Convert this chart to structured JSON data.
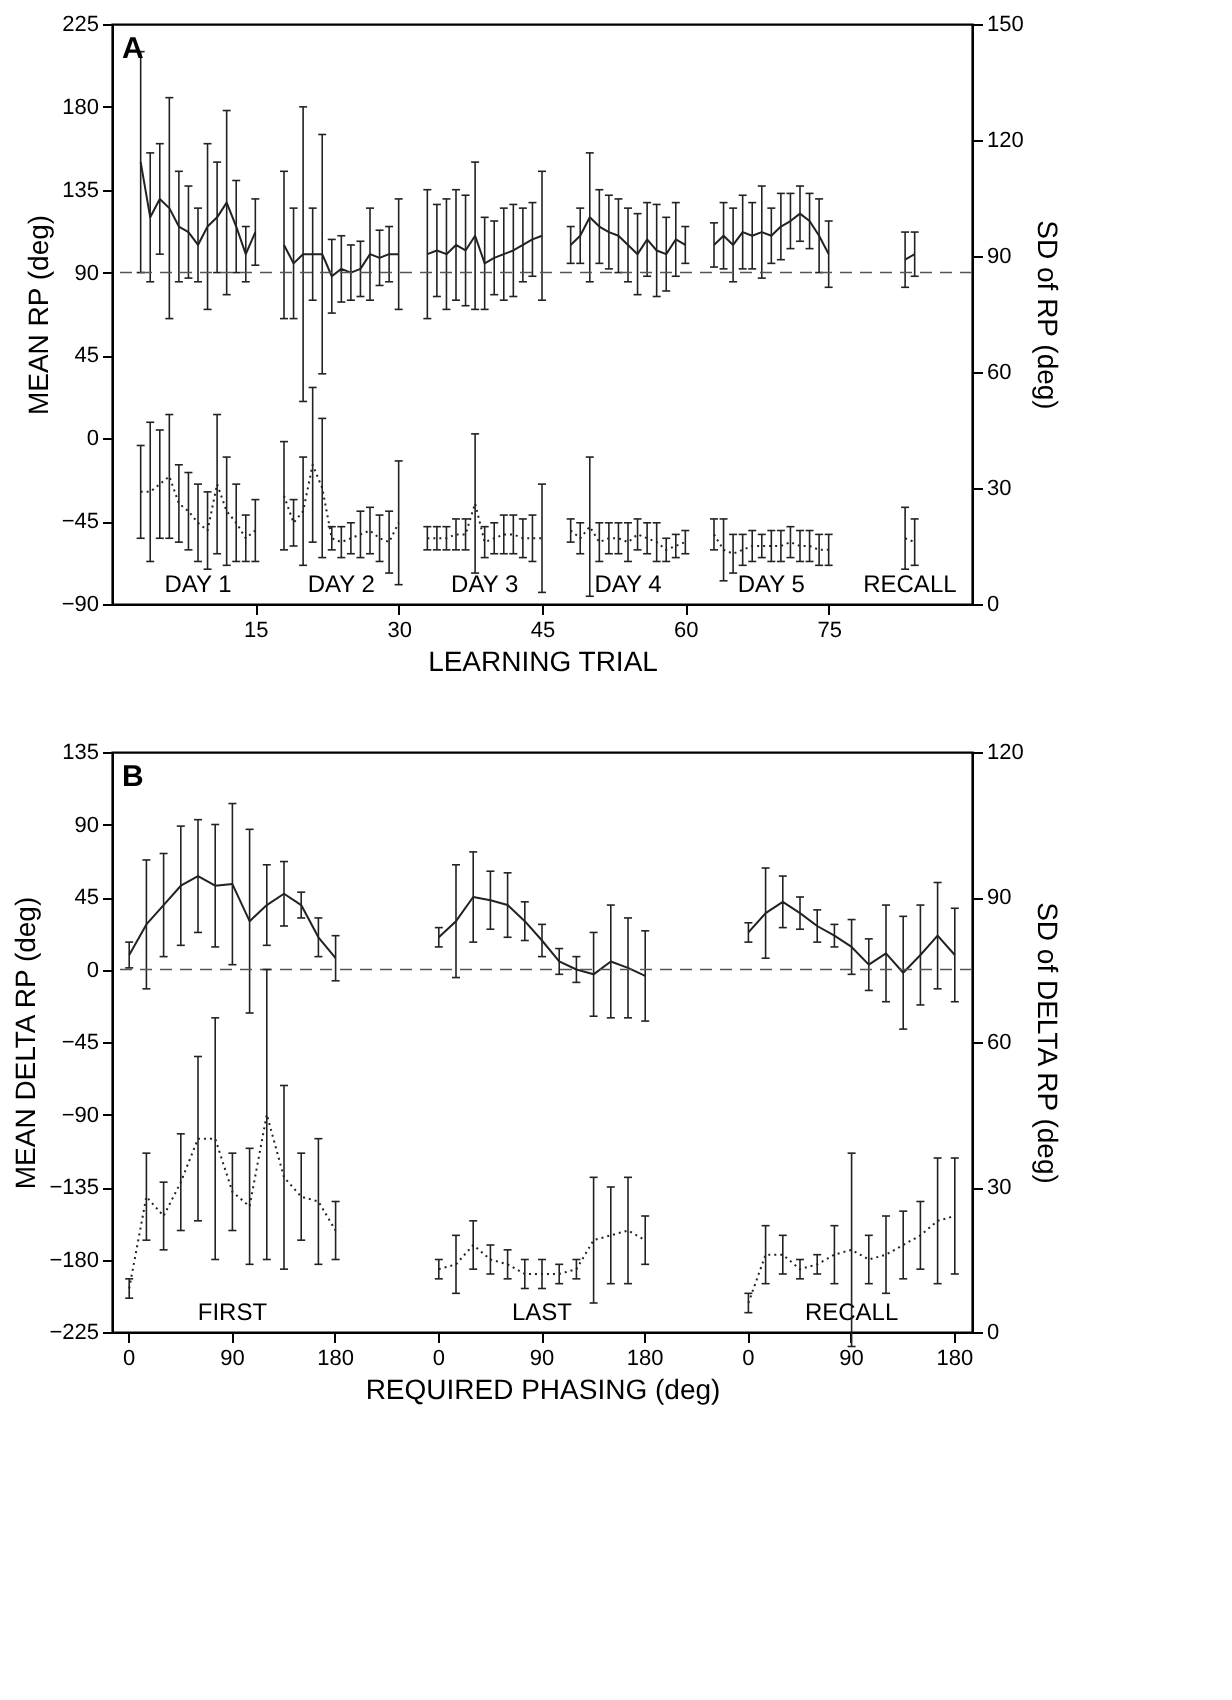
{
  "chart_data": [
    {
      "type": "line",
      "xlabel": "LEARNING TRIAL",
      "ylabel": "MEAN RP (deg)",
      "y2label": "SD of RP (deg)",
      "xlim": [
        0,
        90
      ],
      "xticks": [
        15,
        30,
        45,
        60,
        75
      ],
      "ylim": [
        -90,
        225
      ],
      "yticks": [
        -90,
        -45,
        0,
        45,
        90,
        135,
        180,
        225
      ],
      "y2lim": [
        0,
        150
      ],
      "y2ticks": [
        0,
        30,
        60,
        90,
        120,
        150
      ],
      "grid": false,
      "series": [
        {
          "type": "line",
          "color": "#222222",
          "line_style": "solid",
          "x": [
            3,
            4,
            5,
            6,
            7,
            8,
            9,
            10,
            11,
            12,
            13,
            14,
            15,
            16,
            18,
            19,
            20,
            21,
            22,
            23,
            24,
            25,
            26,
            27,
            28,
            29,
            30,
            31,
            33,
            34,
            35,
            36,
            37,
            38,
            39,
            40,
            41,
            42,
            43,
            44,
            45,
            46,
            48,
            49,
            50,
            51,
            52,
            53,
            54,
            55,
            56,
            57,
            58,
            59,
            60,
            61,
            63,
            64,
            65,
            66,
            67,
            68,
            69,
            70,
            71,
            72,
            73,
            74,
            75,
            76,
            83,
            84
          ],
          "values": [
            150,
            120,
            130,
            125,
            115,
            112,
            105,
            115,
            120,
            128,
            115,
            100,
            112,
            null,
            105,
            95,
            100,
            100,
            100,
            88,
            92,
            90,
            92,
            100,
            98,
            100,
            100,
            null,
            100,
            102,
            100,
            105,
            102,
            110,
            95,
            98,
            100,
            102,
            105,
            108,
            110,
            null,
            105,
            110,
            120,
            115,
            112,
            110,
            105,
            100,
            108,
            102,
            100,
            108,
            105,
            null,
            105,
            110,
            105,
            112,
            110,
            112,
            110,
            115,
            118,
            122,
            118,
            110,
            100,
            null,
            97,
            100
          ],
          "errors": [
            60,
            35,
            30,
            60,
            30,
            25,
            20,
            45,
            30,
            50,
            25,
            15,
            18,
            null,
            40,
            30,
            80,
            25,
            65,
            20,
            18,
            15,
            15,
            25,
            15,
            15,
            30,
            null,
            35,
            25,
            30,
            30,
            30,
            40,
            25,
            20,
            25,
            25,
            20,
            20,
            35,
            null,
            10,
            15,
            35,
            20,
            20,
            20,
            20,
            22,
            20,
            25,
            20,
            20,
            10,
            null,
            12,
            18,
            20,
            20,
            18,
            25,
            15,
            18,
            15,
            15,
            15,
            20,
            18,
            null,
            15,
            12
          ]
        },
        {
          "type": "line",
          "axis": "y2",
          "color": "#222222",
          "line_style": "dotted",
          "x": [
            3,
            4,
            5,
            6,
            7,
            8,
            9,
            10,
            11,
            12,
            13,
            14,
            15,
            16,
            18,
            19,
            20,
            21,
            22,
            23,
            24,
            25,
            26,
            27,
            28,
            29,
            30,
            31,
            33,
            34,
            35,
            36,
            37,
            38,
            39,
            40,
            41,
            42,
            43,
            44,
            45,
            46,
            48,
            49,
            50,
            51,
            52,
            53,
            54,
            55,
            56,
            57,
            58,
            59,
            60,
            61,
            63,
            64,
            65,
            66,
            67,
            68,
            69,
            70,
            71,
            72,
            73,
            74,
            75,
            76,
            83,
            84
          ],
          "values": [
            29,
            29,
            31,
            33,
            26,
            24,
            21,
            19,
            31,
            24,
            21,
            17,
            19,
            null,
            28,
            21,
            24,
            36,
            30,
            17,
            16,
            17,
            18,
            19,
            17,
            16,
            21,
            null,
            17,
            17,
            17,
            18,
            18,
            26,
            16,
            17,
            18,
            18,
            17,
            17,
            17,
            null,
            19,
            17,
            20,
            16,
            17,
            17,
            16,
            18,
            17,
            16,
            14,
            15,
            16,
            null,
            18,
            14,
            13,
            14,
            15,
            15,
            15,
            15,
            16,
            15,
            15,
            14,
            14,
            null,
            17,
            16
          ],
          "errors": [
            12,
            18,
            14,
            16,
            10,
            10,
            10,
            10,
            18,
            14,
            10,
            6,
            8,
            null,
            14,
            6,
            14,
            20,
            18,
            3,
            4,
            4,
            6,
            6,
            6,
            8,
            16,
            null,
            3,
            3,
            3,
            4,
            4,
            18,
            4,
            4,
            5,
            5,
            5,
            6,
            14,
            null,
            3,
            4,
            18,
            5,
            4,
            4,
            5,
            4,
            4,
            5,
            3,
            3,
            3,
            null,
            4,
            8,
            5,
            4,
            4,
            3,
            4,
            4,
            4,
            4,
            4,
            4,
            4,
            null,
            8,
            6
          ]
        }
      ],
      "ref_lines": [
        {
          "axis": "y",
          "value": 90,
          "line_style": "dashed",
          "color": "#555555"
        }
      ],
      "annotations": [
        "A",
        "DAY 1",
        "DAY 2",
        "DAY 3",
        "DAY 4",
        "DAY 5",
        "RECALL"
      ]
    },
    {
      "type": "line",
      "xlabel": "REQUIRED PHASING (deg)",
      "ylabel": "MEAN DELTA RP (deg)",
      "y2label": "SD of DELTA RP (deg)",
      "categories": [
        "0",
        null,
        null,
        null,
        null,
        null,
        "90",
        null,
        null,
        null,
        null,
        null,
        "180",
        null,
        null,
        null,
        null,
        null,
        "0",
        null,
        null,
        null,
        null,
        null,
        "90",
        null,
        null,
        null,
        null,
        null,
        "180",
        null,
        null,
        null,
        null,
        null,
        "0",
        null,
        null,
        null,
        null,
        null,
        "90",
        null,
        null,
        null,
        null,
        null,
        "180"
      ],
      "ylim": [
        -225,
        135
      ],
      "yticks": [
        -225,
        -180,
        -135,
        -90,
        -45,
        0,
        45,
        90,
        135
      ],
      "y2lim": [
        0,
        120
      ],
      "y2ticks": [
        0,
        30,
        60,
        90,
        120
      ],
      "grid": false,
      "series": [
        {
          "type": "line",
          "color": "#222222",
          "line_style": "solid",
          "values": [
            9,
            28,
            40,
            52,
            58,
            52,
            53,
            30,
            40,
            47,
            40,
            20,
            7,
            null,
            null,
            null,
            null,
            null,
            20,
            30,
            45,
            43,
            40,
            30,
            18,
            5,
            0,
            -3,
            5,
            1,
            -4,
            null,
            null,
            null,
            null,
            null,
            23,
            35,
            42,
            35,
            27,
            21,
            14,
            3,
            10,
            -2,
            9,
            21,
            9
          ],
          "errors": [
            8,
            40,
            32,
            37,
            35,
            38,
            50,
            57,
            25,
            20,
            8,
            12,
            14,
            null,
            null,
            null,
            null,
            null,
            6,
            35,
            28,
            18,
            20,
            12,
            10,
            8,
            8,
            26,
            35,
            31,
            28,
            null,
            null,
            null,
            null,
            null,
            6,
            28,
            16,
            10,
            10,
            7,
            17,
            16,
            30,
            35,
            31,
            33,
            29
          ]
        },
        {
          "type": "line",
          "axis": "y2",
          "color": "#222222",
          "line_style": "dotted",
          "values": [
            9,
            28,
            24,
            31,
            40,
            40,
            29,
            26,
            45,
            32,
            28,
            27,
            21,
            null,
            null,
            null,
            null,
            null,
            13,
            14,
            18,
            15,
            14,
            12,
            12,
            12,
            13,
            19,
            20,
            21,
            19,
            null,
            null,
            null,
            null,
            null,
            6,
            16,
            16,
            13,
            14,
            16,
            17,
            15,
            16,
            18,
            20,
            23,
            24
          ],
          "errors": [
            2,
            9,
            7,
            10,
            17,
            25,
            8,
            12,
            30,
            19,
            9,
            13,
            6,
            null,
            null,
            null,
            null,
            null,
            2,
            6,
            5,
            3,
            3,
            3,
            3,
            2,
            2,
            13,
            10,
            11,
            5,
            null,
            null,
            null,
            null,
            null,
            2,
            6,
            4,
            2,
            2,
            6,
            20,
            5,
            8,
            7,
            7,
            13,
            12
          ]
        }
      ],
      "ref_lines": [
        {
          "axis": "y",
          "value": 0,
          "line_style": "dashed",
          "color": "#555555"
        }
      ],
      "annotations": [
        "B",
        "FIRST",
        "LAST",
        "RECALL"
      ]
    }
  ]
}
